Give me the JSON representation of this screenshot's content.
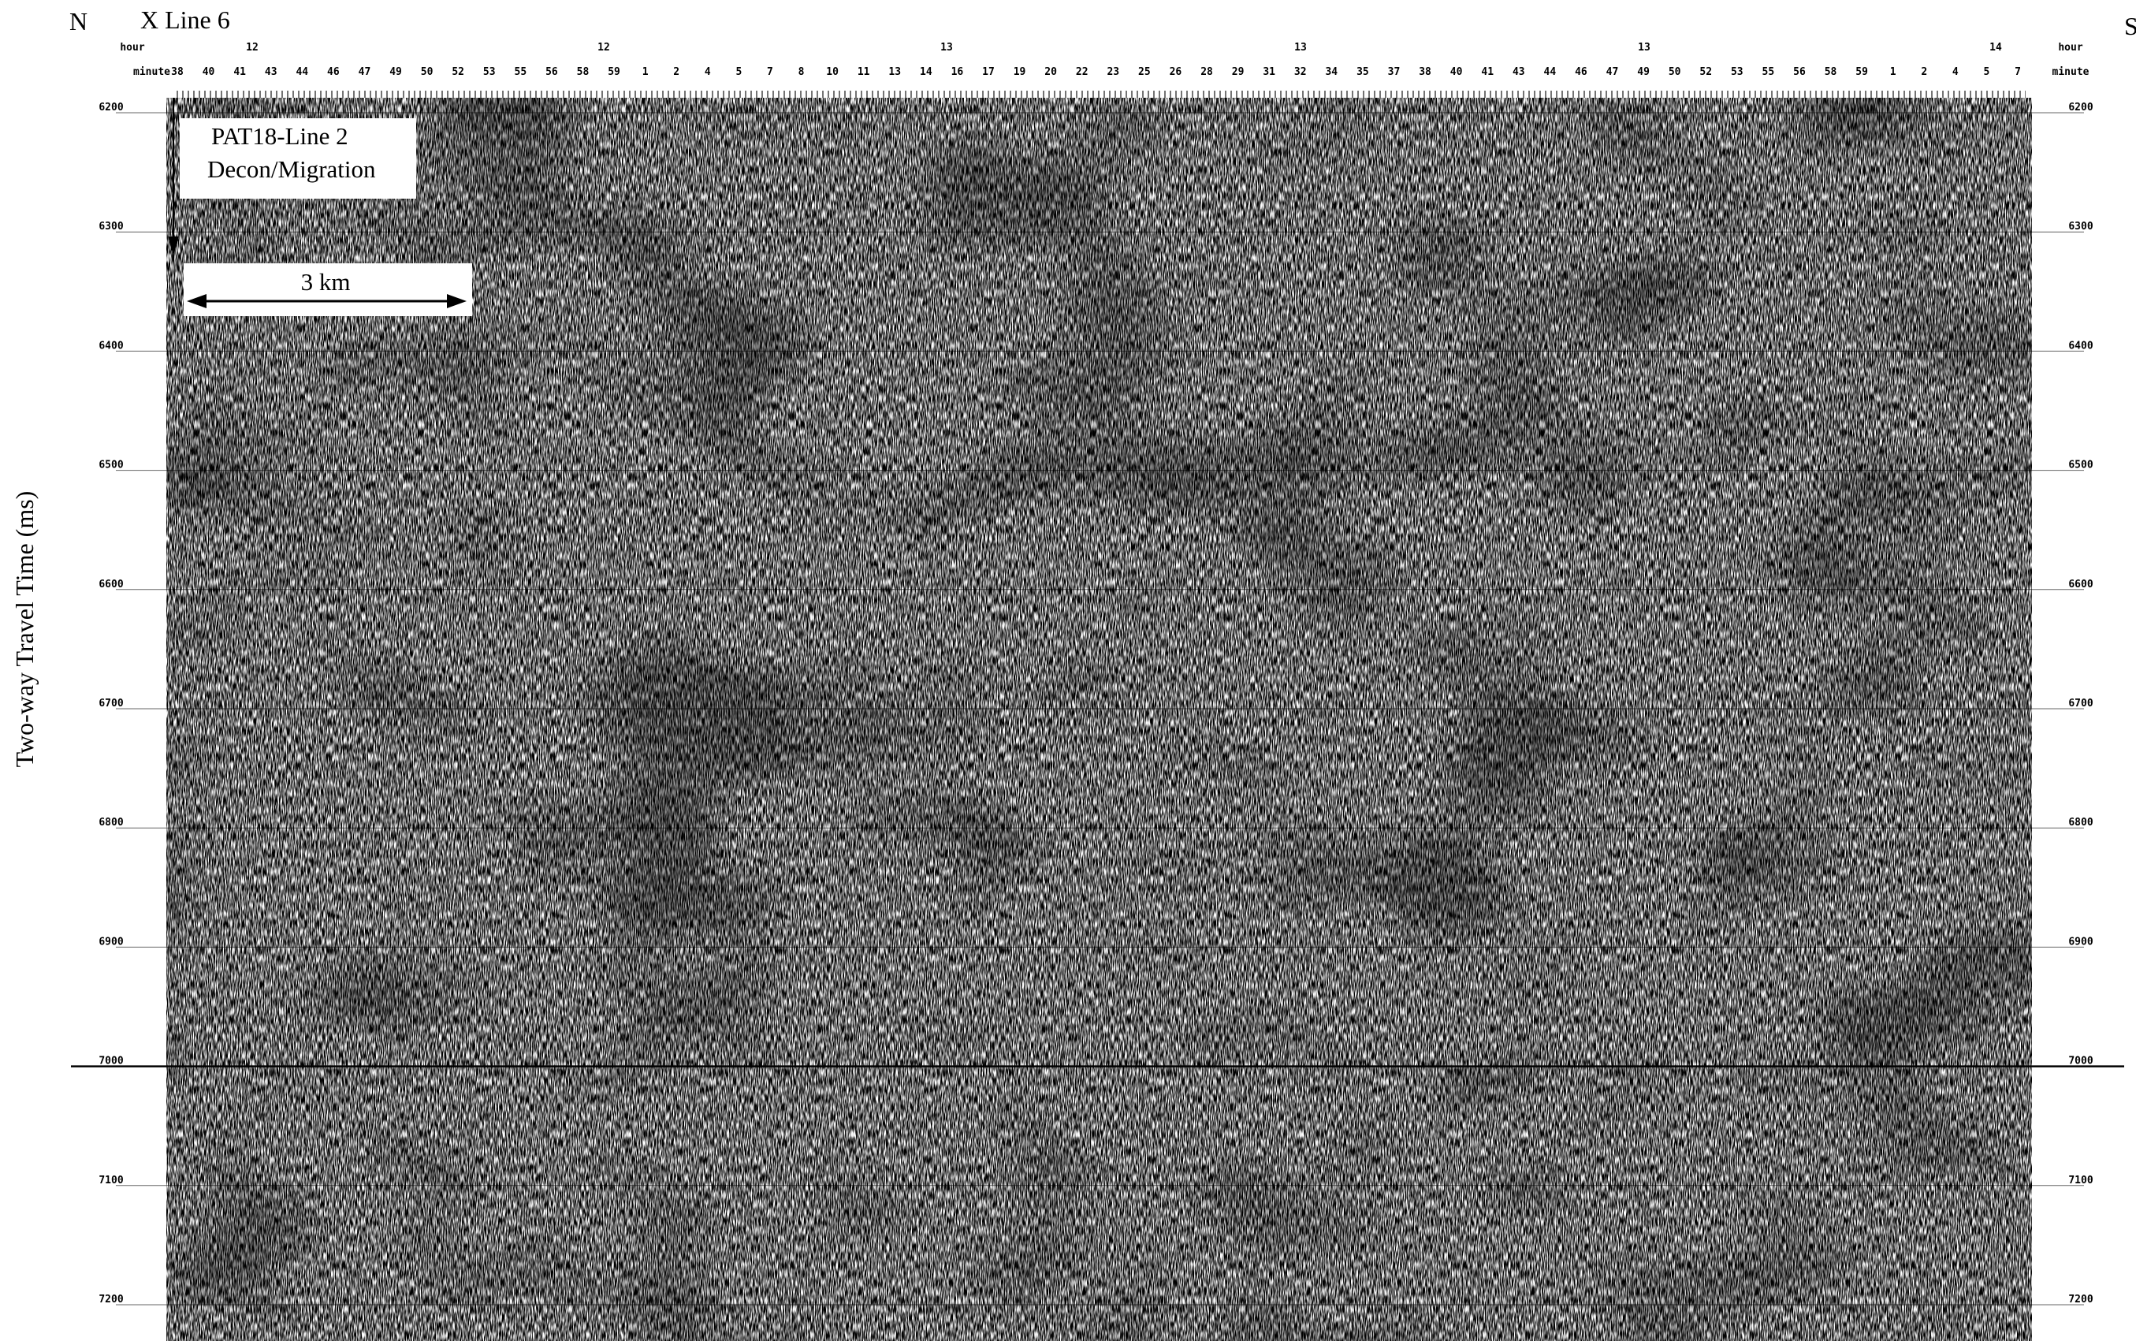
{
  "header": {
    "left_label": "N",
    "line_label": "X Line 6",
    "right_label": "S"
  },
  "time_axis": {
    "label": "Two-way Travel Time (ms)",
    "ticks": [
      6200,
      6300,
      6400,
      6500,
      6600,
      6700,
      6800,
      6900,
      7000,
      7100,
      7200
    ]
  },
  "top_axis": {
    "hour_label": "hour",
    "minute_label": "minute",
    "hours": [
      "12",
      "12",
      "13",
      "13",
      "13",
      "14"
    ],
    "minutes": [
      "38",
      "40",
      "41",
      "43",
      "44",
      "46",
      "47",
      "49",
      "50",
      "52",
      "53",
      "55",
      "56",
      "58",
      "59",
      "1",
      "2",
      "4",
      "5",
      "7",
      "8",
      "10",
      "11",
      "13",
      "14",
      "16",
      "17",
      "19",
      "20",
      "22",
      "23",
      "25",
      "26",
      "28",
      "29",
      "31",
      "32",
      "34",
      "35",
      "37",
      "38",
      "40",
      "41",
      "43",
      "44",
      "46",
      "47",
      "49",
      "50",
      "52",
      "53",
      "55",
      "56",
      "58",
      "59",
      "1",
      "2",
      "4",
      "5",
      "7"
    ]
  },
  "annotations": {
    "section_title": "PAT18-Line 2",
    "processing": "Decon/Migration",
    "scale_bar": "3 km"
  }
}
